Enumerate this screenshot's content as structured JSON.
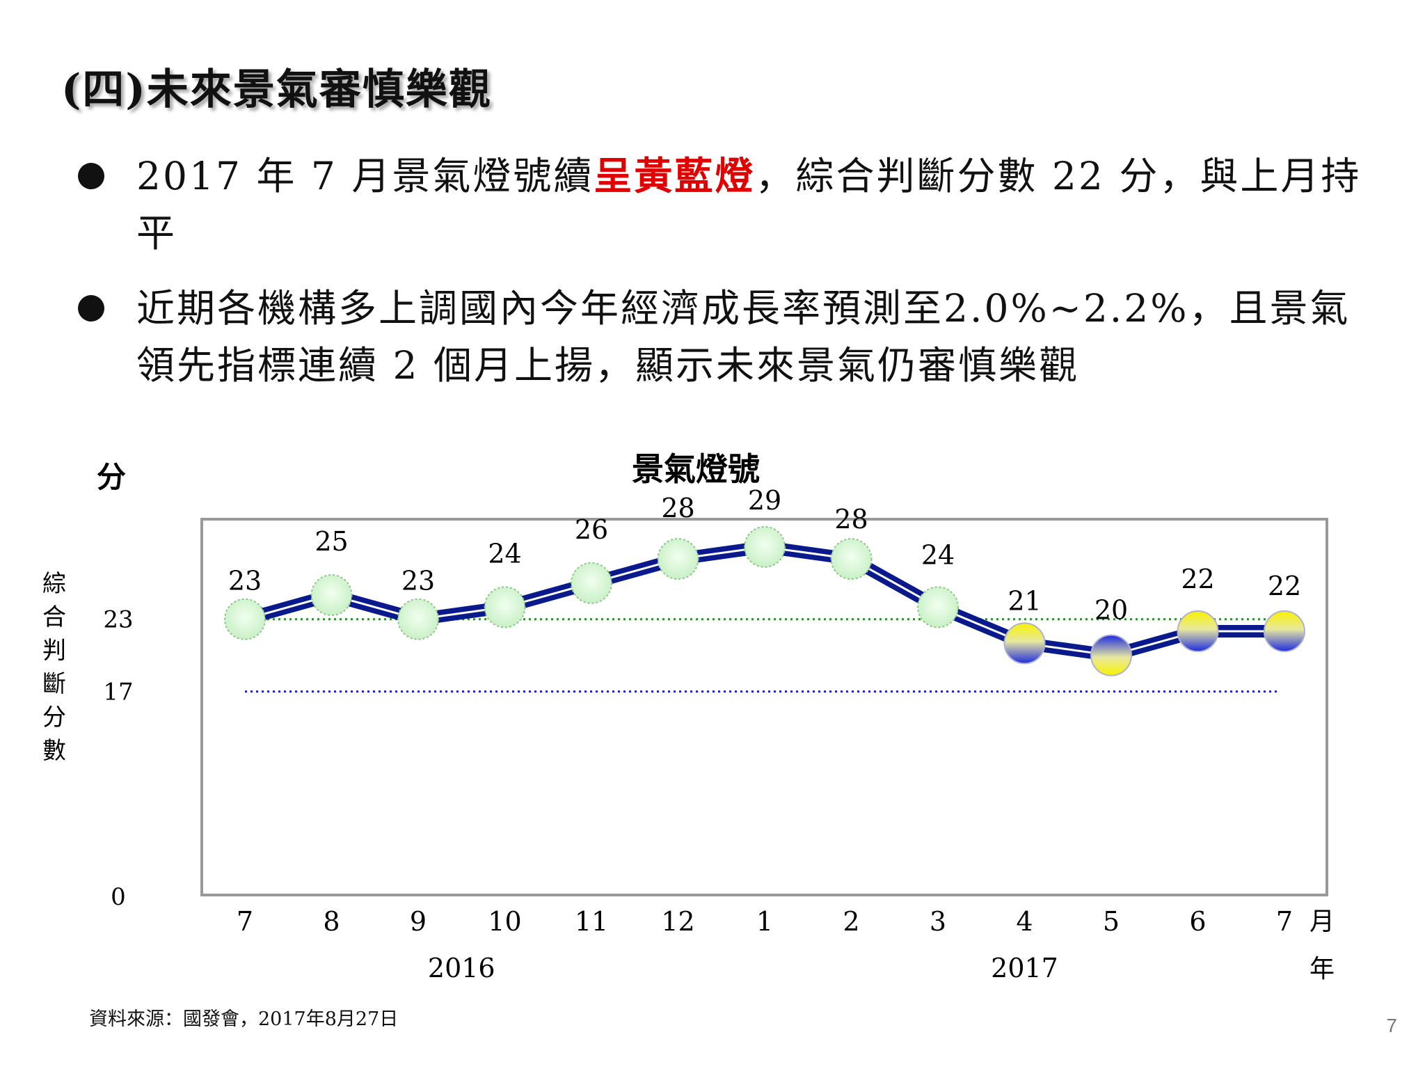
{
  "title": "(四)未來景氣審慎樂觀",
  "bullets": [
    {
      "pre": "2017 年 7 月景氣燈號續",
      "highlight": "呈黃藍燈",
      "post": "，綜合判斷分數 22 分，與上月持平"
    },
    {
      "pre": "近期各機構多上調國內今年經濟成長率預測至2.0%~2.2%，且景氣領先指標連續 2 個月上揚，顯示未來景氣仍審慎樂觀",
      "highlight": "",
      "post": ""
    }
  ],
  "colors": {
    "highlight": "#e00000",
    "line": "#0a1a8c",
    "green_light": "#d8f7d6",
    "yellow_blue_top": "#f4f000",
    "yellow_blue_bottom": "#1f2ee0"
  },
  "chart_data": {
    "type": "line",
    "title": "景氣燈號",
    "y_unit": "分",
    "ylabel": "綜合判斷分數",
    "x_unit_month": "月",
    "x_unit_year": "年",
    "ylim": [
      0,
      31.3
    ],
    "y_ticks": [
      0,
      17,
      23
    ],
    "categories": [
      "7",
      "8",
      "9",
      "10",
      "11",
      "12",
      "1",
      "2",
      "3",
      "4",
      "5",
      "6",
      "7"
    ],
    "years": [
      {
        "label": "2016",
        "center_index": 2.5
      },
      {
        "label": "2017",
        "center_index": 9
      }
    ],
    "values": [
      23,
      25,
      23,
      24,
      26,
      28,
      29,
      28,
      24,
      21,
      20,
      22,
      22
    ],
    "lights": [
      "green",
      "green",
      "green",
      "green",
      "green",
      "green",
      "green",
      "green",
      "green",
      "yellow-blue",
      "yellow-blue",
      "yellow-blue",
      "yellow-blue"
    ],
    "reference_lines": [
      {
        "value": 23,
        "color": "#2e8b2e"
      },
      {
        "value": 17,
        "color": "#1f1fc8"
      }
    ],
    "grid": false
  },
  "source": "資料來源：國發會，2017年8月27日",
  "page_number": "7"
}
